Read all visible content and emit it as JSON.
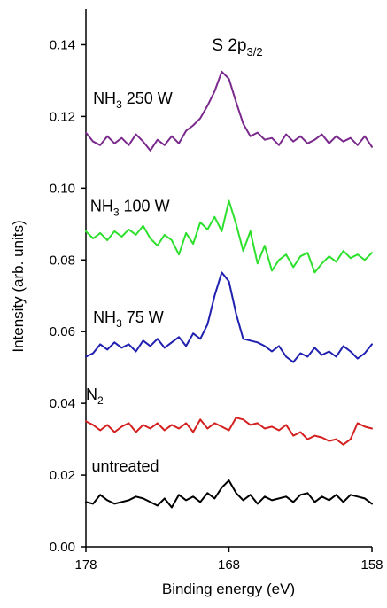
{
  "chart_data": {
    "type": "line",
    "title": {
      "main": "S 2p",
      "sub": "3/2"
    },
    "xlabel": "Binding energy (eV)",
    "ylabel": "Intensity (arb. units)",
    "xlim": [
      178,
      158
    ],
    "ylim": [
      0,
      0.15
    ],
    "x_reversed": true,
    "grid": false,
    "x_ticks": [
      {
        "value": 178,
        "label": "178"
      },
      {
        "value": 168,
        "label": "168"
      },
      {
        "value": 158,
        "label": "158"
      }
    ],
    "y_ticks": [
      {
        "value": 0.0,
        "label": "0.00"
      },
      {
        "value": 0.02,
        "label": "0.02"
      },
      {
        "value": 0.04,
        "label": "0.04"
      },
      {
        "value": 0.06,
        "label": "0.06"
      },
      {
        "value": 0.08,
        "label": "0.08"
      },
      {
        "value": 0.1,
        "label": "0.10"
      },
      {
        "value": 0.12,
        "label": "0.12"
      },
      {
        "value": 0.14,
        "label": "0.14"
      }
    ],
    "series": [
      {
        "name": "untreated",
        "label": {
          "main": "untreated",
          "sub": "",
          "tail": "",
          "at": [
            177.6,
            0.021
          ]
        },
        "color": "#000000",
        "x": [
          178,
          177.5,
          177,
          176.5,
          176,
          175.5,
          175,
          174.5,
          174,
          173.5,
          173,
          172.5,
          172,
          171.5,
          171,
          170.5,
          170,
          169.5,
          169,
          168.5,
          168,
          167.5,
          167,
          166.5,
          166,
          165.5,
          165,
          164.5,
          164,
          163.5,
          163,
          162.5,
          162,
          161.5,
          161,
          160.5,
          160,
          159.5,
          159,
          158.5,
          158
        ],
        "values": [
          0.0125,
          0.012,
          0.0145,
          0.013,
          0.012,
          0.0125,
          0.013,
          0.014,
          0.0135,
          0.0125,
          0.0115,
          0.0135,
          0.011,
          0.0145,
          0.013,
          0.014,
          0.0125,
          0.015,
          0.0135,
          0.0165,
          0.0185,
          0.015,
          0.013,
          0.0145,
          0.012,
          0.014,
          0.013,
          0.0135,
          0.014,
          0.0125,
          0.0145,
          0.015,
          0.0125,
          0.014,
          0.013,
          0.0145,
          0.0125,
          0.0145,
          0.014,
          0.0135,
          0.012
        ]
      },
      {
        "name": "N2",
        "label": {
          "main": "N",
          "sub": "2",
          "tail": "",
          "at": [
            178,
            0.041
          ]
        },
        "color": "#d42020",
        "x": [
          178,
          177.5,
          177,
          176.5,
          176,
          175.5,
          175,
          174.5,
          174,
          173.5,
          173,
          172.5,
          172,
          171.5,
          171,
          170.5,
          170,
          169.5,
          169,
          168.5,
          168,
          167.5,
          167,
          166.5,
          166,
          165.5,
          165,
          164.5,
          164,
          163.5,
          163,
          162.5,
          162,
          161.5,
          161,
          160.5,
          160,
          159.5,
          159,
          158.5,
          158
        ],
        "values": [
          0.035,
          0.034,
          0.0325,
          0.034,
          0.032,
          0.0335,
          0.0345,
          0.032,
          0.034,
          0.033,
          0.0345,
          0.0325,
          0.034,
          0.033,
          0.0345,
          0.032,
          0.0355,
          0.033,
          0.0345,
          0.0335,
          0.0325,
          0.036,
          0.0355,
          0.034,
          0.0345,
          0.033,
          0.0335,
          0.0325,
          0.034,
          0.031,
          0.032,
          0.03,
          0.031,
          0.0305,
          0.0295,
          0.03,
          0.0285,
          0.03,
          0.0345,
          0.0335,
          0.033
        ]
      },
      {
        "name": "NH3 75 W",
        "label": {
          "main": "NH",
          "sub": "3",
          "tail": " 75 W",
          "at": [
            177.5,
            0.0625
          ]
        },
        "color": "#2020b0",
        "x": [
          178,
          177.5,
          177,
          176.5,
          176,
          175.5,
          175,
          174.5,
          174,
          173.5,
          173,
          172.5,
          172,
          171.5,
          171,
          170.5,
          170,
          169.5,
          169,
          168.5,
          168,
          167.5,
          167,
          166.5,
          166,
          165.5,
          165,
          164.5,
          164,
          163.5,
          163,
          162.5,
          162,
          161.5,
          161,
          160.5,
          160,
          159.5,
          159,
          158.5,
          158
        ],
        "values": [
          0.053,
          0.054,
          0.0565,
          0.055,
          0.057,
          0.0555,
          0.0565,
          0.0545,
          0.0575,
          0.056,
          0.058,
          0.0555,
          0.057,
          0.0585,
          0.056,
          0.0595,
          0.058,
          0.062,
          0.07,
          0.0765,
          0.074,
          0.065,
          0.058,
          0.0575,
          0.057,
          0.056,
          0.0545,
          0.056,
          0.053,
          0.0515,
          0.054,
          0.053,
          0.0555,
          0.0535,
          0.0545,
          0.053,
          0.056,
          0.0545,
          0.0525,
          0.054,
          0.0565
        ]
      },
      {
        "name": "NH3 100 W",
        "label": {
          "main": "NH",
          "sub": "3",
          "tail": " 100 W",
          "at": [
            177.7,
            0.0935
          ]
        },
        "color": "#2ee02e",
        "x": [
          178,
          177.5,
          177,
          176.5,
          176,
          175.5,
          175,
          174.5,
          174,
          173.5,
          173,
          172.5,
          172,
          171.5,
          171,
          170.5,
          170,
          169.5,
          169,
          168.5,
          168,
          167.5,
          167,
          166.5,
          166,
          165.5,
          165,
          164.5,
          164,
          163.5,
          163,
          162.5,
          162,
          161.5,
          161,
          160.5,
          160,
          159.5,
          159,
          158.5,
          158
        ],
        "values": [
          0.088,
          0.086,
          0.0875,
          0.0855,
          0.088,
          0.0865,
          0.0885,
          0.087,
          0.0895,
          0.086,
          0.084,
          0.087,
          0.0855,
          0.0815,
          0.0875,
          0.0845,
          0.0905,
          0.0885,
          0.092,
          0.088,
          0.0965,
          0.09,
          0.0825,
          0.088,
          0.079,
          0.084,
          0.077,
          0.08,
          0.0815,
          0.078,
          0.081,
          0.082,
          0.0765,
          0.079,
          0.081,
          0.0795,
          0.0825,
          0.0805,
          0.0815,
          0.08,
          0.082
        ]
      },
      {
        "name": "NH3 250 W",
        "label": {
          "main": "NH",
          "sub": "3",
          "tail": " 250 W",
          "at": [
            177.5,
            0.1235
          ]
        },
        "color": "#7a2a8c",
        "x": [
          178,
          177.5,
          177,
          176.5,
          176,
          175.5,
          175,
          174.5,
          174,
          173.5,
          173,
          172.5,
          172,
          171.5,
          171,
          170.5,
          170,
          169.5,
          169,
          168.5,
          168,
          167.5,
          167,
          166.5,
          166,
          165.5,
          165,
          164.5,
          164,
          163.5,
          163,
          162.5,
          162,
          161.5,
          161,
          160.5,
          160,
          159.5,
          159,
          158.5,
          158
        ],
        "values": [
          0.1155,
          0.113,
          0.112,
          0.1145,
          0.1125,
          0.114,
          0.112,
          0.115,
          0.113,
          0.1105,
          0.1135,
          0.112,
          0.1145,
          0.1125,
          0.116,
          0.1175,
          0.1195,
          0.123,
          0.127,
          0.1325,
          0.1305,
          0.124,
          0.118,
          0.1145,
          0.1155,
          0.1135,
          0.114,
          0.112,
          0.115,
          0.113,
          0.1145,
          0.1125,
          0.1135,
          0.115,
          0.1125,
          0.1145,
          0.113,
          0.114,
          0.112,
          0.1145,
          0.1115
        ]
      }
    ]
  }
}
